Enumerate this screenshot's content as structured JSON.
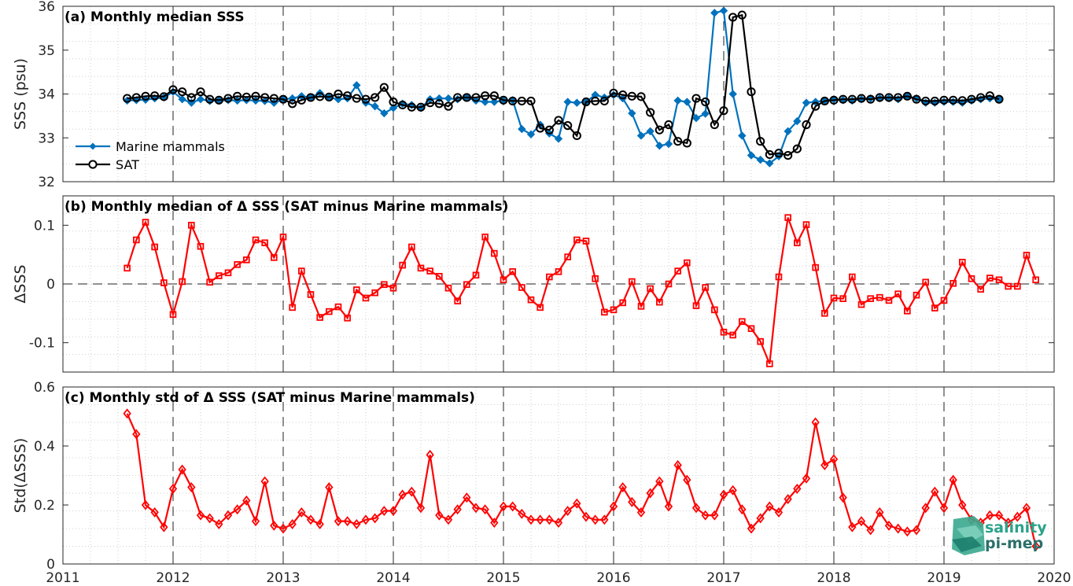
{
  "chart_data": [
    {
      "type": "line",
      "title": "(a) Monthly median SSS",
      "ylabel": "SSS (psu)",
      "ylim": [
        32,
        36
      ],
      "yticks": [
        "32",
        "33",
        "34",
        "35",
        "36"
      ],
      "legend_position": "lower-left",
      "x_start": "2011-08",
      "series": [
        {
          "name": "Marine mammals",
          "color": "#0072BD",
          "values": [
            33.85,
            33.86,
            33.87,
            33.9,
            33.92,
            34.05,
            33.88,
            33.8,
            33.88,
            33.84,
            33.85,
            33.86,
            33.85,
            33.86,
            33.85,
            33.84,
            33.8,
            33.88,
            33.9,
            33.95,
            33.92,
            34.02,
            33.92,
            33.88,
            33.9,
            34.2,
            33.8,
            33.72,
            33.56,
            33.68,
            33.78,
            33.75,
            33.68,
            33.88,
            33.9,
            33.9,
            33.88,
            33.92,
            33.85,
            33.82,
            33.82,
            33.85,
            33.86,
            33.2,
            33.08,
            33.3,
            33.1,
            32.98,
            33.82,
            33.8,
            33.82,
            33.98,
            33.92,
            33.98,
            33.9,
            33.56,
            33.05,
            33.15,
            32.82,
            32.86,
            33.85,
            33.82,
            33.45,
            33.55,
            35.85,
            35.9,
            34.0,
            33.05,
            32.6,
            32.5,
            32.42,
            32.58,
            33.15,
            33.38,
            33.8,
            33.82,
            33.85,
            33.88,
            33.86,
            33.85,
            33.88,
            33.9,
            33.9,
            33.9,
            33.88,
            33.95,
            33.9,
            33.8,
            33.8,
            33.82,
            33.82,
            33.8,
            33.85,
            33.88,
            33.9,
            33.88
          ]
        },
        {
          "name": "SAT",
          "color": "#000000",
          "values": [
            33.9,
            33.92,
            33.95,
            33.96,
            33.94,
            34.1,
            34.05,
            33.92,
            34.05,
            33.88,
            33.86,
            33.9,
            33.95,
            33.93,
            33.95,
            33.92,
            33.9,
            33.88,
            33.78,
            33.86,
            33.92,
            33.94,
            33.93,
            34.0,
            33.96,
            33.9,
            33.88,
            33.92,
            34.15,
            33.82,
            33.75,
            33.7,
            33.7,
            33.8,
            33.78,
            33.72,
            33.92,
            33.92,
            33.92,
            33.96,
            33.96,
            33.86,
            33.84,
            33.84,
            33.84,
            33.22,
            33.18,
            33.4,
            33.28,
            33.05,
            33.82,
            33.84,
            33.84,
            34.02,
            33.98,
            33.95,
            33.94,
            33.58,
            33.18,
            33.3,
            32.92,
            32.88,
            33.9,
            33.82,
            33.3,
            33.62,
            35.75,
            35.8,
            34.05,
            32.92,
            32.62,
            32.65,
            32.6,
            32.75,
            33.3,
            33.72,
            33.84,
            33.86,
            33.88,
            33.88,
            33.9,
            33.88,
            33.92,
            33.92,
            33.92,
            33.95,
            33.88,
            33.84,
            33.84,
            33.86,
            33.86,
            33.85,
            33.88,
            33.92,
            33.96,
            33.88
          ]
        }
      ]
    },
    {
      "type": "line",
      "title": "(b) Monthly median of Δ SSS (SAT minus Marine mammals)",
      "ylabel": "ΔSSS",
      "ylim": [
        -0.15,
        0.15
      ],
      "yticks": [
        "0.1",
        "0",
        "-0.1"
      ],
      "x_start": "2011-08",
      "series": [
        {
          "color": "#FF0000",
          "values": [
            0.027,
            0.075,
            0.105,
            0.063,
            0.002,
            -0.052,
            0.004,
            0.1,
            0.064,
            0.003,
            0.014,
            0.019,
            0.033,
            0.041,
            0.075,
            0.07,
            0.045,
            0.08,
            -0.04,
            0.022,
            -0.018,
            -0.057,
            -0.047,
            -0.039,
            -0.058,
            -0.01,
            -0.024,
            -0.015,
            -0.001,
            -0.007,
            0.032,
            0.063,
            0.027,
            0.022,
            0.013,
            -0.007,
            -0.029,
            -0.001,
            0.015,
            0.08,
            0.052,
            0.007,
            0.021,
            -0.006,
            -0.027,
            -0.04,
            0.012,
            0.021,
            0.046,
            0.075,
            0.073,
            0.009,
            -0.048,
            -0.044,
            -0.032,
            0.004,
            -0.038,
            -0.008,
            -0.031,
            0.0,
            0.022,
            0.036,
            -0.037,
            -0.006,
            -0.044,
            -0.082,
            -0.087,
            -0.064,
            -0.076,
            -0.098,
            -0.136,
            0.012,
            0.113,
            0.07,
            0.101,
            0.028,
            -0.05,
            -0.024,
            -0.025,
            0.012,
            -0.035,
            -0.025,
            -0.023,
            -0.028,
            -0.017,
            -0.046,
            -0.019,
            0.003,
            -0.041,
            -0.028,
            0.001,
            0.037,
            0.009,
            -0.009,
            0.01,
            0.007,
            -0.004,
            -0.004,
            0.049,
            0.007
          ]
        }
      ]
    },
    {
      "type": "line",
      "title": "(c) Monthly std of Δ SSS (SAT minus Marine mammals)",
      "ylabel": "Std(ΔSSS)",
      "ylim": [
        0,
        0.6
      ],
      "yticks": [
        "0",
        "0.2",
        "0.4",
        "0.6"
      ],
      "x_start": "2011-08",
      "series": [
        {
          "color": "#FF0000",
          "values": [
            0.51,
            0.44,
            0.2,
            0.175,
            0.125,
            0.255,
            0.32,
            0.26,
            0.165,
            0.155,
            0.135,
            0.165,
            0.185,
            0.215,
            0.145,
            0.28,
            0.13,
            0.12,
            0.135,
            0.175,
            0.15,
            0.135,
            0.26,
            0.145,
            0.145,
            0.135,
            0.15,
            0.155,
            0.18,
            0.18,
            0.235,
            0.245,
            0.19,
            0.37,
            0.165,
            0.15,
            0.185,
            0.225,
            0.19,
            0.185,
            0.14,
            0.195,
            0.195,
            0.17,
            0.15,
            0.15,
            0.15,
            0.14,
            0.18,
            0.205,
            0.16,
            0.15,
            0.15,
            0.195,
            0.26,
            0.21,
            0.175,
            0.24,
            0.28,
            0.195,
            0.335,
            0.285,
            0.19,
            0.165,
            0.165,
            0.235,
            0.25,
            0.185,
            0.12,
            0.155,
            0.195,
            0.175,
            0.22,
            0.255,
            0.29,
            0.48,
            0.335,
            0.355,
            0.225,
            0.125,
            0.145,
            0.115,
            0.175,
            0.13,
            0.12,
            0.11,
            0.115,
            0.19,
            0.245,
            0.19,
            0.285,
            0.2,
            0.15,
            0.14,
            0.165,
            0.165,
            0.14,
            0.16,
            0.19,
            0.06
          ]
        }
      ]
    }
  ],
  "x_axis": {
    "ticks": [
      "2011",
      "2012",
      "2013",
      "2014",
      "2015",
      "2016",
      "2017",
      "2018",
      "2019",
      "2020"
    ],
    "range": [
      "2011-01",
      "2020-01"
    ]
  },
  "logo": {
    "line1": "salinity",
    "line2": "pi-mep"
  }
}
